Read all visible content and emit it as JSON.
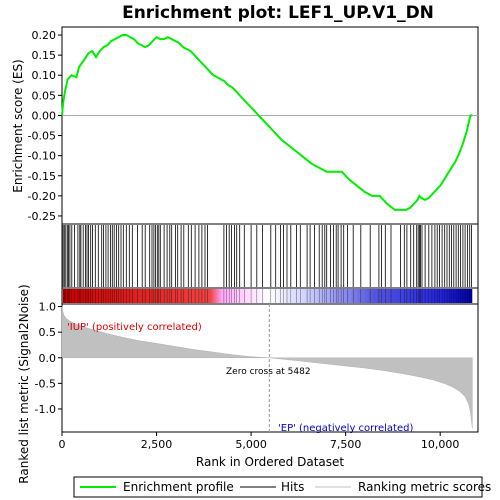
{
  "chart_data": {
    "type": "line",
    "title": "Enrichment plot: LEF1_UP.V1_DN",
    "top_panel": {
      "ylabel": "Enrichment score (ES)",
      "ylim": [
        -0.27,
        0.22
      ],
      "yticks": [
        0.2,
        0.15,
        0.1,
        0.05,
        0.0,
        -0.05,
        -0.1,
        -0.15,
        -0.2,
        -0.25
      ],
      "ytick_labels": [
        "0.20",
        "0.15",
        "0.10",
        "0.05",
        "0.00",
        "-0.05",
        "-0.10",
        "-0.15",
        "-0.20",
        "-0.25"
      ],
      "series": [
        {
          "name": "Enrichment profile",
          "color": "#00ee00",
          "x": [
            0,
            30,
            80,
            150,
            250,
            380,
            450,
            520,
            600,
            700,
            800,
            900,
            1000,
            1100,
            1200,
            1300,
            1400,
            1500,
            1600,
            1700,
            1800,
            1900,
            2000,
            2100,
            2200,
            2300,
            2400,
            2500,
            2600,
            2700,
            2800,
            2900,
            3000,
            3100,
            3200,
            3300,
            3400,
            3500,
            3600,
            3700,
            3800,
            3900,
            4000,
            4100,
            4200,
            4300,
            4400,
            4500,
            4600,
            4700,
            4800,
            4900,
            5000,
            5100,
            5200,
            5300,
            5400,
            5482,
            5600,
            5800,
            6000,
            6200,
            6400,
            6600,
            6800,
            7000,
            7200,
            7400,
            7500,
            7600,
            7800,
            8000,
            8200,
            8400,
            8500,
            8600,
            8800,
            8900,
            9000,
            9100,
            9200,
            9300,
            9400,
            9450,
            9500,
            9600,
            9700,
            9800,
            9900,
            10000,
            10100,
            10200,
            10300,
            10400,
            10500,
            10600,
            10700,
            10750,
            10800,
            10850
          ],
          "y": [
            0.0,
            0.03,
            0.06,
            0.09,
            0.1,
            0.095,
            0.12,
            0.13,
            0.14,
            0.155,
            0.16,
            0.145,
            0.16,
            0.17,
            0.175,
            0.185,
            0.19,
            0.195,
            0.2,
            0.2,
            0.195,
            0.19,
            0.18,
            0.175,
            0.17,
            0.175,
            0.185,
            0.195,
            0.19,
            0.19,
            0.195,
            0.19,
            0.185,
            0.18,
            0.17,
            0.165,
            0.16,
            0.15,
            0.14,
            0.13,
            0.12,
            0.11,
            0.1,
            0.095,
            0.09,
            0.085,
            0.075,
            0.07,
            0.06,
            0.05,
            0.04,
            0.03,
            0.02,
            0.01,
            0.0,
            -0.01,
            -0.02,
            -0.028,
            -0.04,
            -0.06,
            -0.075,
            -0.09,
            -0.105,
            -0.12,
            -0.13,
            -0.14,
            -0.14,
            -0.14,
            -0.15,
            -0.16,
            -0.175,
            -0.19,
            -0.2,
            -0.2,
            -0.21,
            -0.22,
            -0.235,
            -0.235,
            -0.235,
            -0.235,
            -0.23,
            -0.22,
            -0.21,
            -0.2,
            -0.205,
            -0.21,
            -0.205,
            -0.195,
            -0.185,
            -0.175,
            -0.16,
            -0.145,
            -0.13,
            -0.115,
            -0.095,
            -0.07,
            -0.04,
            -0.02,
            0.0,
            0.0
          ]
        }
      ]
    },
    "hits": {
      "name": "Hits",
      "color": "#000000",
      "positions": [
        30,
        60,
        100,
        140,
        170,
        210,
        260,
        330,
        420,
        470,
        500,
        560,
        620,
        660,
        700,
        760,
        810,
        880,
        960,
        1050,
        1100,
        1160,
        1220,
        1280,
        1330,
        1380,
        1440,
        1500,
        1560,
        1620,
        1700,
        1780,
        1860,
        2000,
        2120,
        2200,
        2320,
        2380,
        2430,
        2470,
        2520,
        2560,
        2600,
        2700,
        2780,
        2850,
        2900,
        3000,
        3060,
        3150,
        3220,
        3340,
        3420,
        3520,
        3620,
        3700,
        3780,
        3850,
        4280,
        4350,
        4420,
        4480,
        4560,
        4620,
        4700,
        4820,
        5000,
        5150,
        5300,
        5520,
        5650,
        5780,
        5860,
        5950,
        6050,
        6200,
        6300,
        6480,
        6560,
        6680,
        6800,
        6880,
        6950,
        7000,
        7100,
        7180,
        7250,
        7300,
        7380,
        7450,
        7550,
        7700,
        7900,
        8150,
        8380,
        8450,
        8550,
        8700,
        8950,
        9050,
        9120,
        9220,
        9300,
        9380,
        9420,
        9450,
        9480,
        9520,
        9600,
        9700,
        9780,
        9860,
        9920,
        9980,
        10050,
        10120,
        10180,
        10240,
        10300,
        10360,
        10420,
        10480,
        10540,
        10600,
        10660,
        10720,
        10780,
        10830
      ]
    },
    "ranking_strip": {
      "colors_left_to_right": [
        "#dd0000",
        "#ff99ff",
        "#ffffff",
        "#9999ff",
        "#0000cc"
      ]
    },
    "bottom_panel": {
      "ylabel": "Ranked list metric (Signal2Noise)",
      "xlabel": "Rank in Ordered Dataset",
      "ylim": [
        -1.45,
        1.05
      ],
      "yticks": [
        1.0,
        0.5,
        0.0,
        -0.5,
        -1.0
      ],
      "ytick_labels": [
        "1.0",
        "0.5",
        "0.0",
        "-0.5",
        "-1.0"
      ],
      "series": [
        {
          "name": "Ranking metric scores",
          "color": "#c0c0c0",
          "x": [
            0,
            20,
            60,
            120,
            200,
            300,
            500,
            800,
            1200,
            1600,
            2000,
            2500,
            3000,
            3500,
            4000,
            4500,
            5000,
            5482,
            6000,
            6500,
            7000,
            7500,
            8000,
            8500,
            9000,
            9500,
            9800,
            10100,
            10300,
            10500,
            10650,
            10750,
            10800,
            10830,
            10850
          ],
          "y": [
            1.0,
            0.9,
            0.82,
            0.76,
            0.72,
            0.68,
            0.62,
            0.55,
            0.47,
            0.4,
            0.34,
            0.28,
            0.22,
            0.16,
            0.11,
            0.06,
            0.02,
            0.0,
            -0.04,
            -0.08,
            -0.12,
            -0.16,
            -0.2,
            -0.25,
            -0.31,
            -0.38,
            -0.43,
            -0.5,
            -0.56,
            -0.65,
            -0.75,
            -0.9,
            -1.05,
            -1.25,
            -1.38
          ]
        }
      ],
      "annotations": [
        {
          "text": "'IUP' (positively correlated)",
          "color": "#dd0000"
        },
        {
          "text": "Zero cross at 5482",
          "color": "#000000"
        },
        {
          "text": "'EP' (negatively correlated)",
          "color": "#0000cc"
        }
      ],
      "zero_cross": 5482
    },
    "x_axis": {
      "xlim": [
        0,
        11000
      ],
      "xticks": [
        0,
        2500,
        5000,
        7500,
        10000
      ],
      "xtick_labels": [
        "0",
        "2,500",
        "5,000",
        "7,500",
        "10,000"
      ],
      "n_genes": 10850
    },
    "legend": {
      "placement": "bottom",
      "entries": [
        {
          "label": "Enrichment profile",
          "color": "#00ee00"
        },
        {
          "label": "Hits",
          "color": "#000000"
        },
        {
          "label": "Ranking metric scores",
          "color": "#c0c0c0"
        }
      ]
    }
  }
}
